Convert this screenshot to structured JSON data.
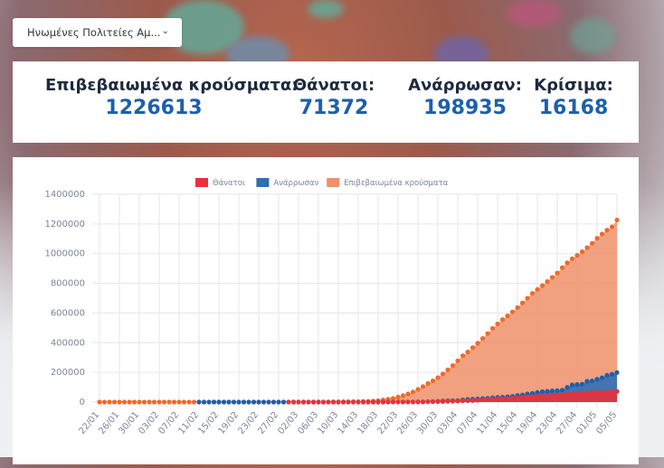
{
  "dropdown": {
    "selected": "Ηνωμένες Πολιτείες Αμ..."
  },
  "stats": [
    {
      "label": "Επιβεβαιωμένα κρούσματα:",
      "value": "1226613"
    },
    {
      "label": "Θάνατοι:",
      "value": "71372"
    },
    {
      "label": "Ανάρρωσαν:",
      "value": "198935"
    },
    {
      "label": "Κρίσιμα:",
      "value": "16168"
    }
  ],
  "chart_data": {
    "type": "area",
    "legend_position": "top",
    "grid": true,
    "ylim": [
      0,
      1400000
    ],
    "y_ticks": [
      "0",
      "200000",
      "400000",
      "600000",
      "800000",
      "1000000",
      "1200000",
      "1400000"
    ],
    "x_ticks": [
      "22/01",
      "26/01",
      "30/01",
      "03/02",
      "07/02",
      "11/02",
      "15/02",
      "19/02",
      "23/02",
      "27/02",
      "02/03",
      "06/03",
      "10/03",
      "14/03",
      "18/03",
      "22/03",
      "26/03",
      "30/03",
      "03/04",
      "07/04",
      "11/04",
      "15/04",
      "19/04",
      "23/04",
      "27/04",
      "01/05",
      "05/05"
    ],
    "x_range": [
      "22/01",
      "05/05"
    ],
    "series": [
      {
        "name": "Θάνατοι",
        "color": "#e8323c",
        "values": [
          0,
          0,
          0,
          0,
          0,
          0,
          0,
          0,
          0,
          0,
          0,
          0,
          0,
          0,
          0,
          0,
          0,
          0,
          0,
          0,
          0,
          0,
          0,
          0,
          0,
          0,
          0,
          0,
          0,
          0,
          0,
          0,
          0,
          0,
          0,
          0,
          0,
          0,
          1,
          1,
          6,
          9,
          11,
          12,
          15,
          19,
          22,
          26,
          30,
          38,
          41,
          48,
          57,
          69,
          87,
          110,
          150,
          206,
          255,
          301,
          414,
          555,
          706,
          942,
          1209,
          1581,
          2026,
          2467,
          2978,
          3873,
          4757,
          5926,
          7087,
          8407,
          9619,
          10783,
          12722,
          14695,
          16478,
          18586,
          20463,
          22020,
          23529,
          25831,
          28325,
          32916,
          34827,
          36773,
          38664,
          40661,
          42094,
          45343,
          47659,
          49954,
          51949,
          54881,
          56219,
          58355,
          60967,
          62996,
          64943,
          66369,
          67682,
          68922,
          71372
        ]
      },
      {
        "name": "Ανάρρωσαν",
        "color": "#2e6fb5",
        "values": [
          0,
          0,
          0,
          0,
          0,
          0,
          0,
          0,
          0,
          0,
          0,
          0,
          0,
          0,
          0,
          0,
          0,
          0,
          0,
          0,
          3,
          3,
          3,
          3,
          3,
          3,
          3,
          3,
          3,
          3,
          3,
          3,
          3,
          3,
          3,
          3,
          3,
          3,
          3,
          7,
          7,
          7,
          7,
          7,
          7,
          7,
          7,
          7,
          7,
          7,
          7,
          7,
          7,
          7,
          7,
          7,
          106,
          108,
          125,
          147,
          171,
          178,
          361,
          361,
          681,
          869,
          2612,
          3148,
          5220,
          7024,
          8474,
          9001,
          9707,
          14652,
          17448,
          19581,
          21763,
          23559,
          25410,
          28790,
          31270,
          32988,
          36254,
          38562,
          44308,
          47763,
          54703,
          58545,
          64840,
          70337,
          72329,
          75204,
          77366,
          80203,
          99079,
          115936,
          118781,
          120720,
          140138,
          142238,
          153947,
          164015,
          180152,
          187180,
          198935
        ]
      },
      {
        "name": "Επιβεβαιωμένα κρούσματα",
        "color": "#f0906a",
        "values": [
          1,
          1,
          2,
          2,
          5,
          5,
          5,
          5,
          5,
          7,
          8,
          8,
          11,
          11,
          11,
          11,
          12,
          12,
          13,
          13,
          13,
          13,
          13,
          13,
          13,
          13,
          15,
          15,
          15,
          15,
          15,
          15,
          16,
          16,
          24,
          30,
          53,
          59,
          60,
          75,
          100,
          124,
          158,
          221,
          319,
          435,
          541,
          704,
          994,
          1301,
          1630,
          2183,
          2770,
          3613,
          4596,
          6344,
          9197,
          13779,
          19367,
          24192,
          33592,
          43781,
          54856,
          68211,
          85435,
          104126,
          124686,
          143025,
          164620,
          189618,
          216721,
          245540,
          277953,
          312245,
          337072,
          366667,
          396223,
          428656,
          461437,
          496535,
          526396,
          555313,
          580619,
          607670,
          636350,
          667801,
          699706,
          732197,
          758809,
          784326,
          811865,
          840351,
          869170,
          905358,
          938154,
          965785,
          988197,
          1012582,
          1039909,
          1069424,
          1103461,
          1132539,
          1158040,
          1180375,
          1226613
        ]
      }
    ]
  }
}
